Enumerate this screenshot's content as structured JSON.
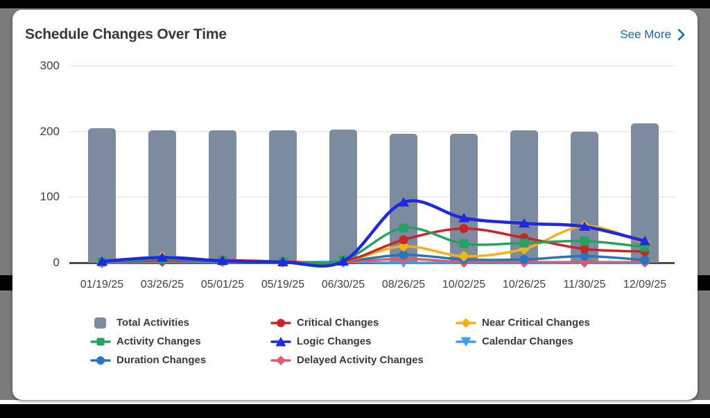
{
  "card": {
    "title": "Schedule Changes Over Time",
    "see_more_label": "See More"
  },
  "chart_data": {
    "type": "bar+line combo",
    "title": "Schedule Changes Over Time",
    "xlabel": "",
    "ylabel": "",
    "ylim": [
      0,
      300
    ],
    "yticks": [
      0,
      100,
      200,
      300
    ],
    "grid": "horizontal",
    "legend_position": "bottom",
    "categories": [
      "01/19/25",
      "03/26/25",
      "05/01/25",
      "05/19/25",
      "06/30/25",
      "08/26/25",
      "10/02/25",
      "10/26/25",
      "11/30/25",
      "12/09/25"
    ],
    "bar_series": {
      "name": "Total Activities",
      "color": "#7c8b9d",
      "values": [
        205,
        202,
        202,
        202,
        203,
        196,
        197,
        202,
        200,
        212
      ]
    },
    "line_series": [
      {
        "name": "Calendar Changes",
        "color": "#3f9bef",
        "marker": "triangle-down",
        "values": [
          0,
          1,
          1,
          0,
          1,
          0,
          0,
          0,
          0,
          0
        ]
      },
      {
        "name": "Delayed Activity Changes",
        "color": "#e05a6e",
        "marker": "diamond",
        "values": [
          0,
          2,
          2,
          1,
          1,
          6,
          1,
          1,
          1,
          1
        ]
      },
      {
        "name": "Duration Changes",
        "color": "#2478ba",
        "marker": "circle",
        "values": [
          1,
          3,
          2,
          1,
          2,
          12,
          5,
          5,
          10,
          4
        ]
      },
      {
        "name": "Near Critical Changes",
        "color": "#f2b116",
        "marker": "diamond",
        "values": [
          1,
          9,
          3,
          1,
          2,
          25,
          10,
          21,
          56,
          30
        ]
      },
      {
        "name": "Critical Changes",
        "color": "#cb2427",
        "marker": "circle",
        "values": [
          1,
          4,
          4,
          2,
          2,
          35,
          52,
          38,
          21,
          17
        ]
      },
      {
        "name": "Activity Changes",
        "color": "#27a064",
        "marker": "square",
        "values": [
          1,
          5,
          3,
          1,
          4,
          53,
          29,
          30,
          33,
          24
        ]
      },
      {
        "name": "Logic Changes",
        "color": "#2028e0",
        "marker": "triangle-up",
        "values": [
          2,
          8,
          3,
          1,
          2,
          92,
          68,
          60,
          55,
          33
        ]
      }
    ]
  },
  "legend": {
    "columns": [
      {
        "items": [
          {
            "label": "Total Activities",
            "marker": "bar",
            "color": "#7c8b9d"
          },
          {
            "label": "Activity Changes",
            "marker": "square",
            "color": "#27a064"
          },
          {
            "label": "Duration Changes",
            "marker": "circle",
            "color": "#2478ba"
          }
        ]
      },
      {
        "items": [
          {
            "label": "Critical Changes",
            "marker": "circle",
            "color": "#cb2427"
          },
          {
            "label": "Logic Changes",
            "marker": "triangle-up",
            "color": "#2028e0"
          },
          {
            "label": "Delayed Activity Changes",
            "marker": "diamond",
            "color": "#e05a6e"
          }
        ]
      },
      {
        "items": [
          {
            "label": "Near Critical Changes",
            "marker": "diamond",
            "color": "#f2b116"
          },
          {
            "label": "Calendar Changes",
            "marker": "triangle-down",
            "color": "#3f9bef"
          }
        ]
      }
    ]
  }
}
